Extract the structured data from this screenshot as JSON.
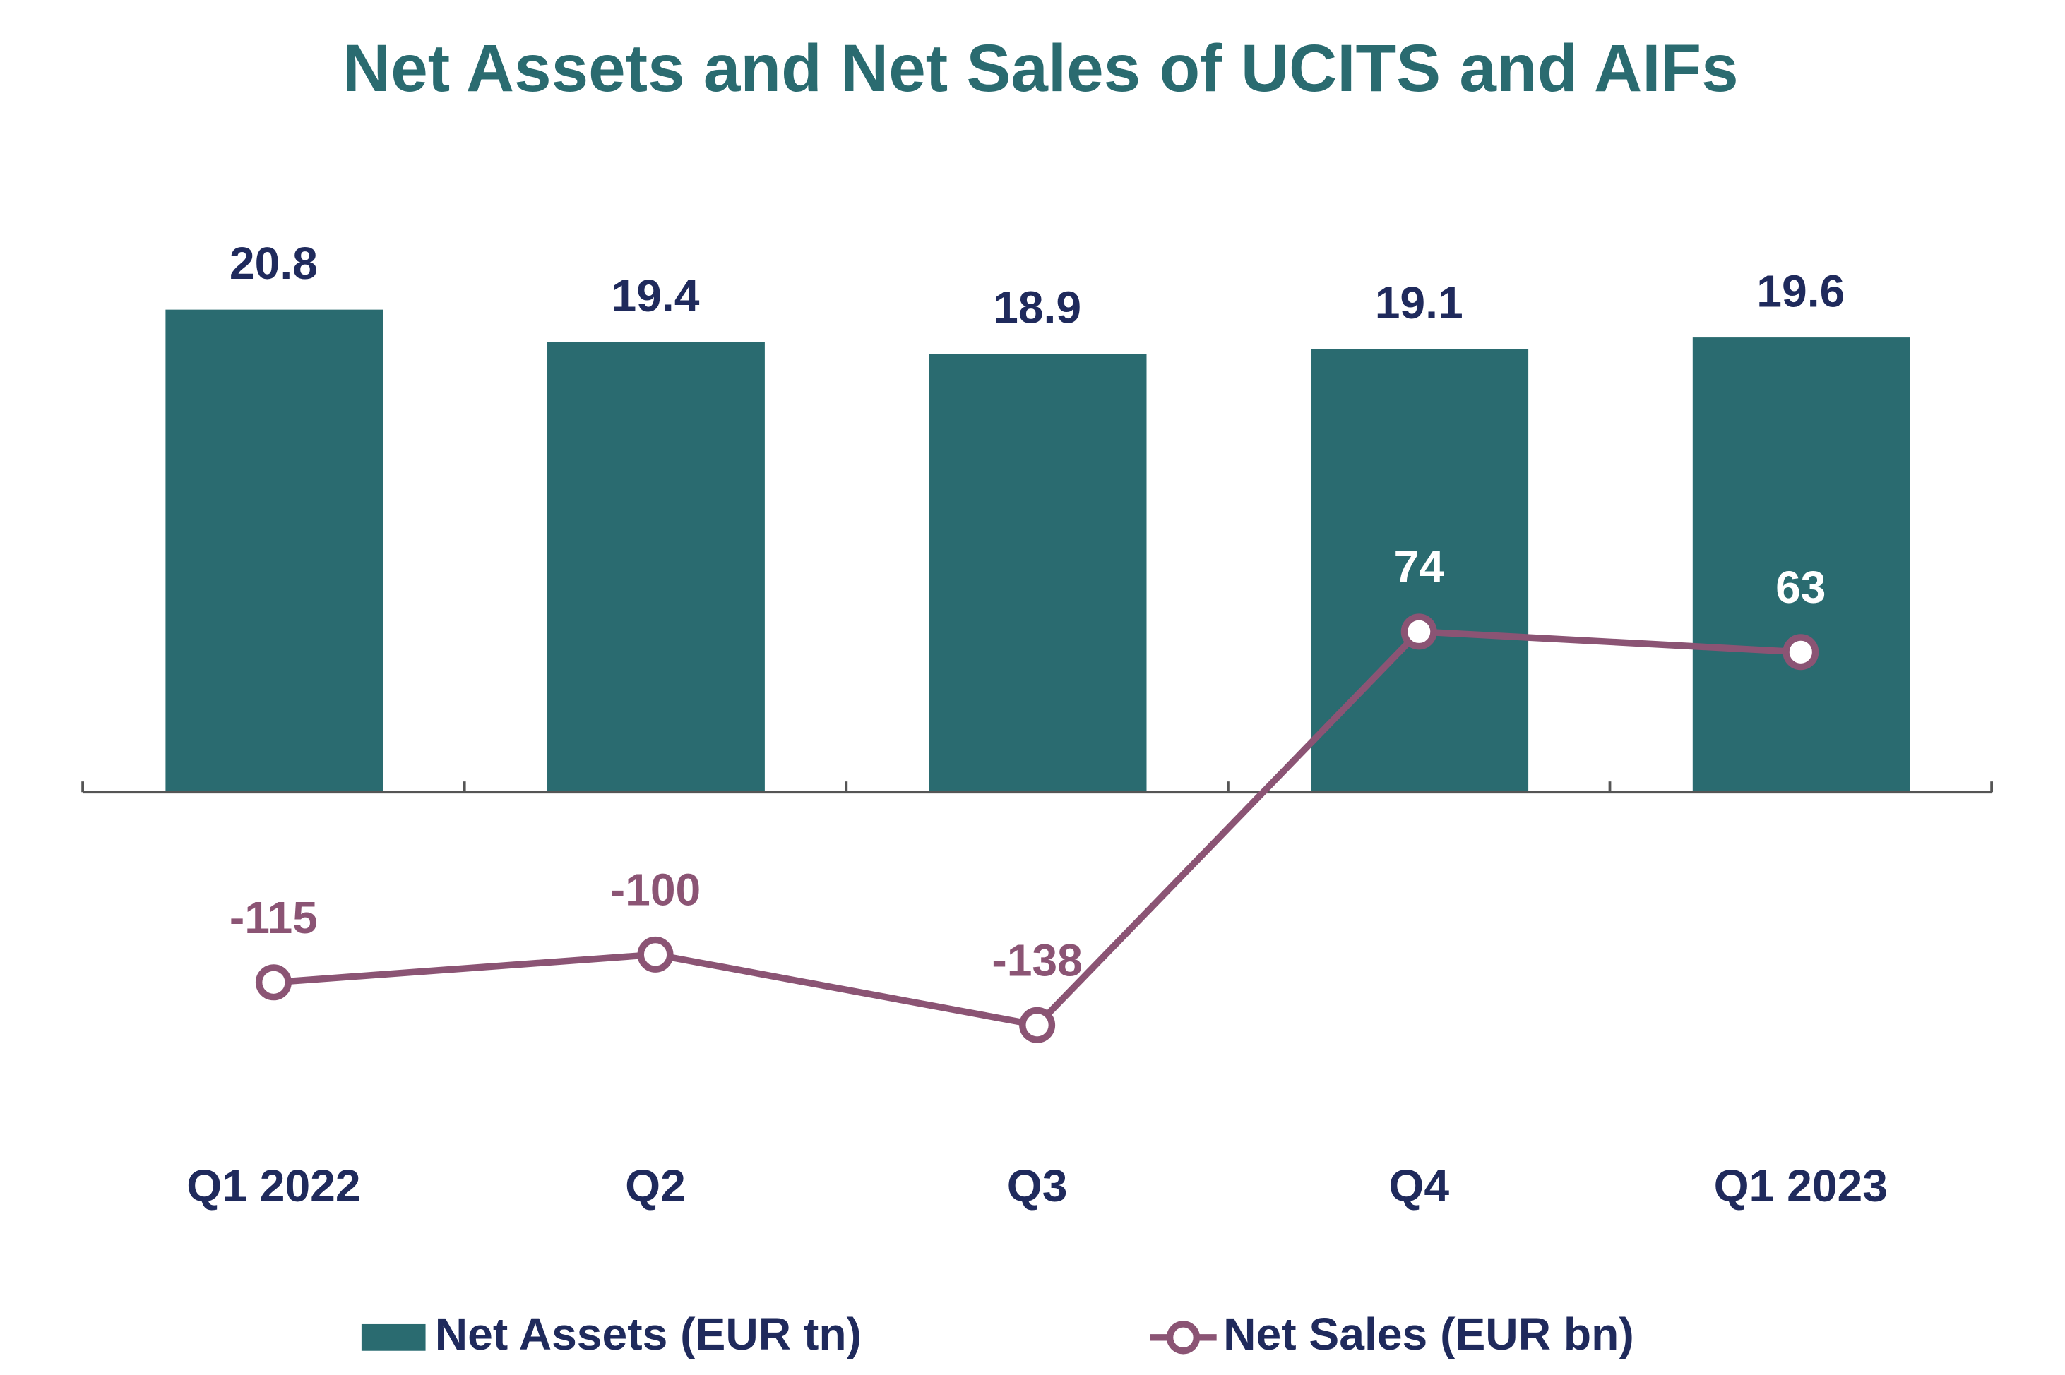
{
  "chart_data": {
    "type": "combo",
    "title": "Net Assets and Net Sales of UCITS and AIFs",
    "categories": [
      "Q1 2022",
      "Q2",
      "Q3",
      "Q4",
      "Q1 2023"
    ],
    "series": [
      {
        "name": "Net Assets (EUR tn)",
        "type": "bar",
        "color": "#2a6b70",
        "values": [
          20.8,
          19.4,
          18.9,
          19.1,
          19.6
        ]
      },
      {
        "name": "Net Sales (EUR bn)",
        "type": "line",
        "axis": "y2",
        "color": "#8b5474",
        "values": [
          -115,
          -100,
          -138,
          74,
          63
        ]
      }
    ],
    "ylim": [
      -15,
      25
    ],
    "y2lim": [
      -200,
      300
    ],
    "legend": "bottom"
  }
}
